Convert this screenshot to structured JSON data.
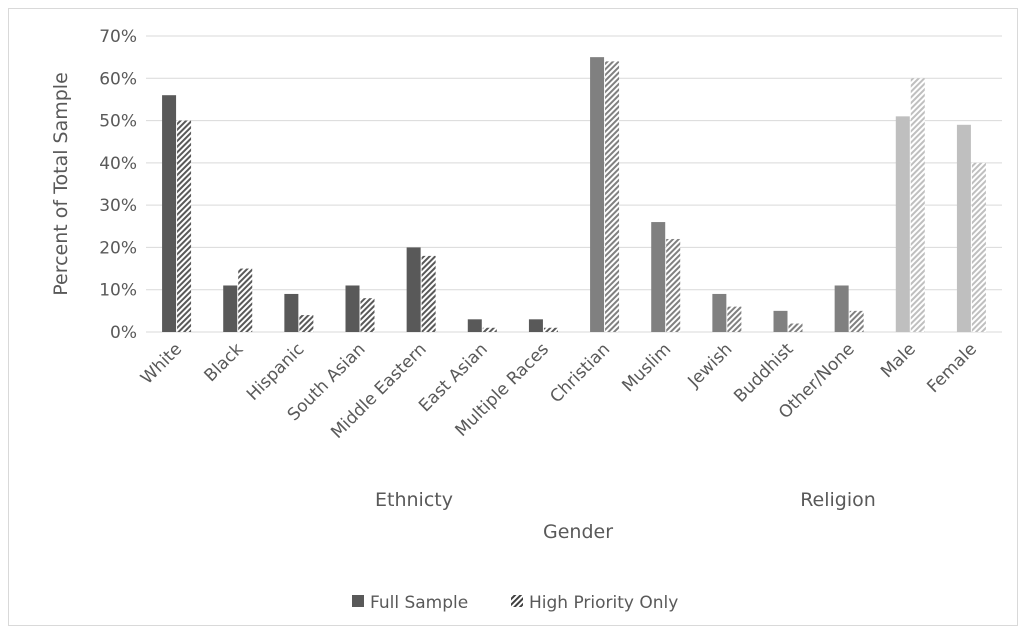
{
  "chart_data": {
    "type": "bar",
    "title": "",
    "ylabel": "Percent of Total Sample",
    "ylim": [
      0,
      70
    ],
    "yticks": [
      "0%",
      "10%",
      "20%",
      "30%",
      "40%",
      "50%",
      "60%",
      "70%"
    ],
    "grid": true,
    "legend_position": "bottom",
    "categories": [
      "White",
      "Black",
      "Hispanic",
      "South Asian",
      "Middle Eastern",
      "East Asian",
      "Multiple Races",
      "Christian",
      "Muslim",
      "Jewish",
      "Buddhist",
      "Other/None",
      "Male",
      "Female"
    ],
    "category_groups": [
      "Ethnicty",
      "Ethnicty",
      "Ethnicty",
      "Ethnicty",
      "Ethnicty",
      "Ethnicty",
      "Ethnicty",
      "Religion",
      "Religion",
      "Religion",
      "Religion",
      "Religion",
      "Gender",
      "Gender"
    ],
    "group_labels": {
      "ethnicity": "Ethnicty",
      "religion": "Religion",
      "gender": "Gender"
    },
    "series": [
      {
        "name": "Full Sample",
        "values": [
          56,
          11,
          9,
          11,
          20,
          3,
          3,
          65,
          26,
          9,
          5,
          11,
          51,
          49
        ]
      },
      {
        "name": "High Priority Only",
        "values": [
          50,
          15,
          4,
          8,
          18,
          1,
          1,
          64,
          22,
          6,
          2,
          5,
          60,
          40
        ]
      }
    ],
    "colors": {
      "ethnicity": "#595959",
      "religion": "#808080",
      "gender": "#bfbfbf",
      "grid": "#d9d9d9",
      "axis": "#d9d9d9",
      "text": "#595959"
    }
  }
}
